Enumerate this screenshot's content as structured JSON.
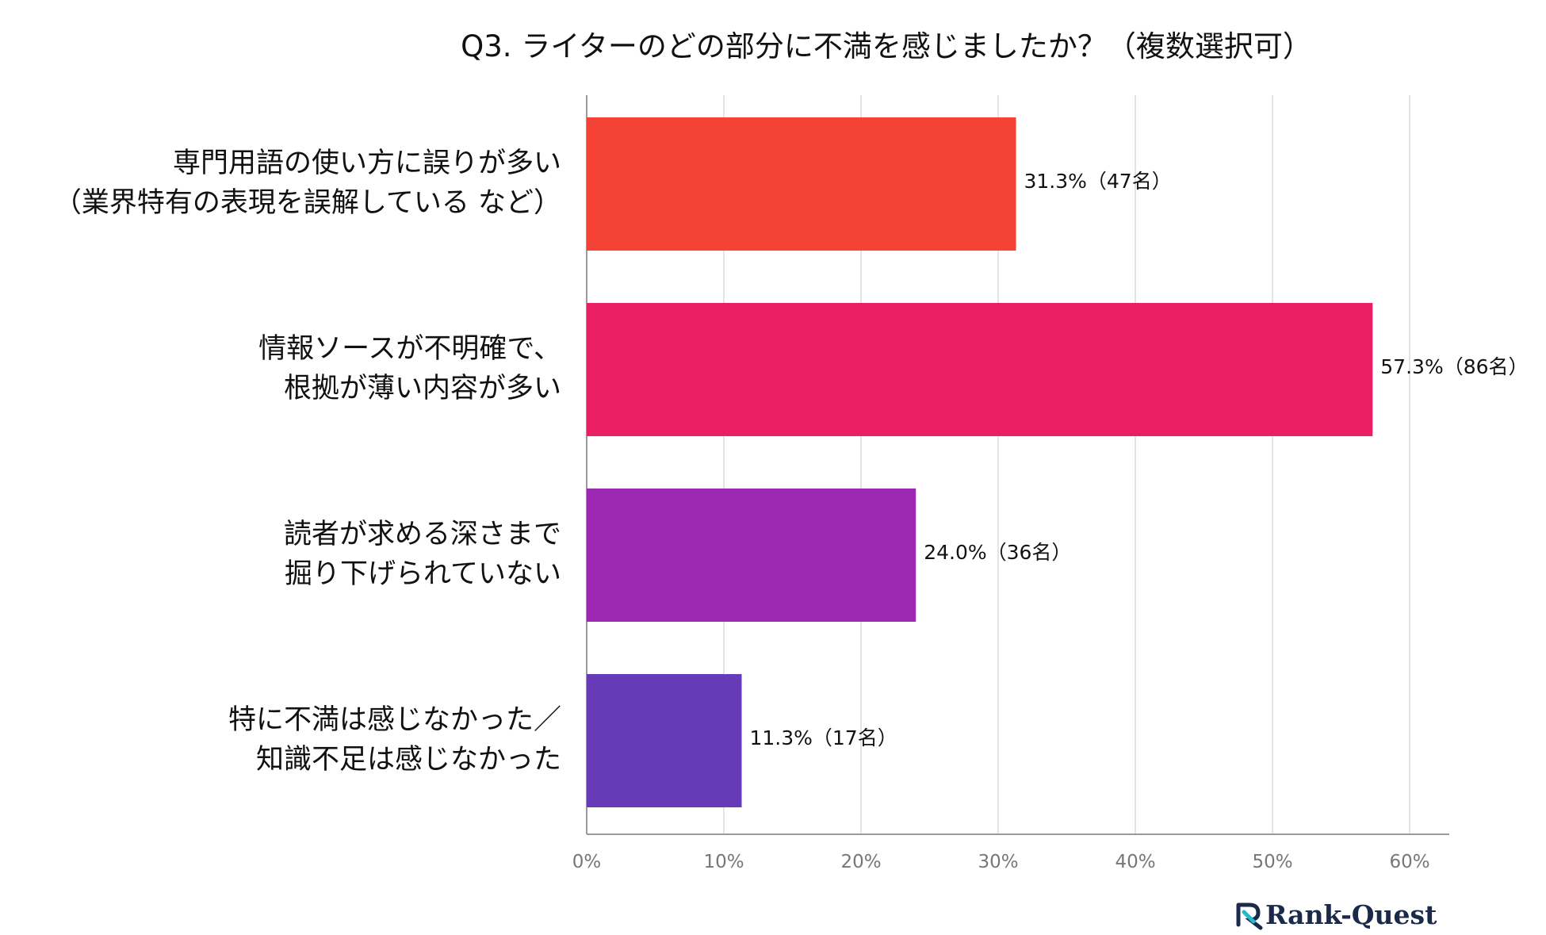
{
  "chart_data": {
    "type": "bar",
    "orientation": "horizontal",
    "title": "Q3. ライターのどの部分に不満を感じましたか？（複数選択可）",
    "categories": [
      [
        "専門用語の使い方に誤りが多い",
        "（業界特有の表現を誤解している など）"
      ],
      [
        "情報ソースが不明確で、",
        "根拠が薄い内容が多い"
      ],
      [
        "読者が求める深さまで",
        "掘り下げられていない"
      ],
      [
        "特に不満は感じなかった／",
        "知識不足は感じなかった"
      ]
    ],
    "values": [
      31.3,
      57.3,
      24.0,
      11.3
    ],
    "value_labels": [
      "31.3%（47名）",
      "57.3%（86名）",
      "24.0%（36名）",
      "11.3%（17名）"
    ],
    "colors": [
      "#f44336",
      "#e91e63",
      "#9c27b0",
      "#673ab7"
    ],
    "xlim": [
      0,
      60
    ],
    "xticks": [
      0,
      10,
      20,
      30,
      40,
      50,
      60
    ],
    "xtick_labels": [
      "0%",
      "10%",
      "20%",
      "30%",
      "40%",
      "50%",
      "60%"
    ],
    "grid": true,
    "legend": "none"
  },
  "logo": {
    "text": "Rank-Quest",
    "icon": "rank-quest-logo-icon",
    "color": "#1b2a4a",
    "accent": "#2bb5c8"
  }
}
